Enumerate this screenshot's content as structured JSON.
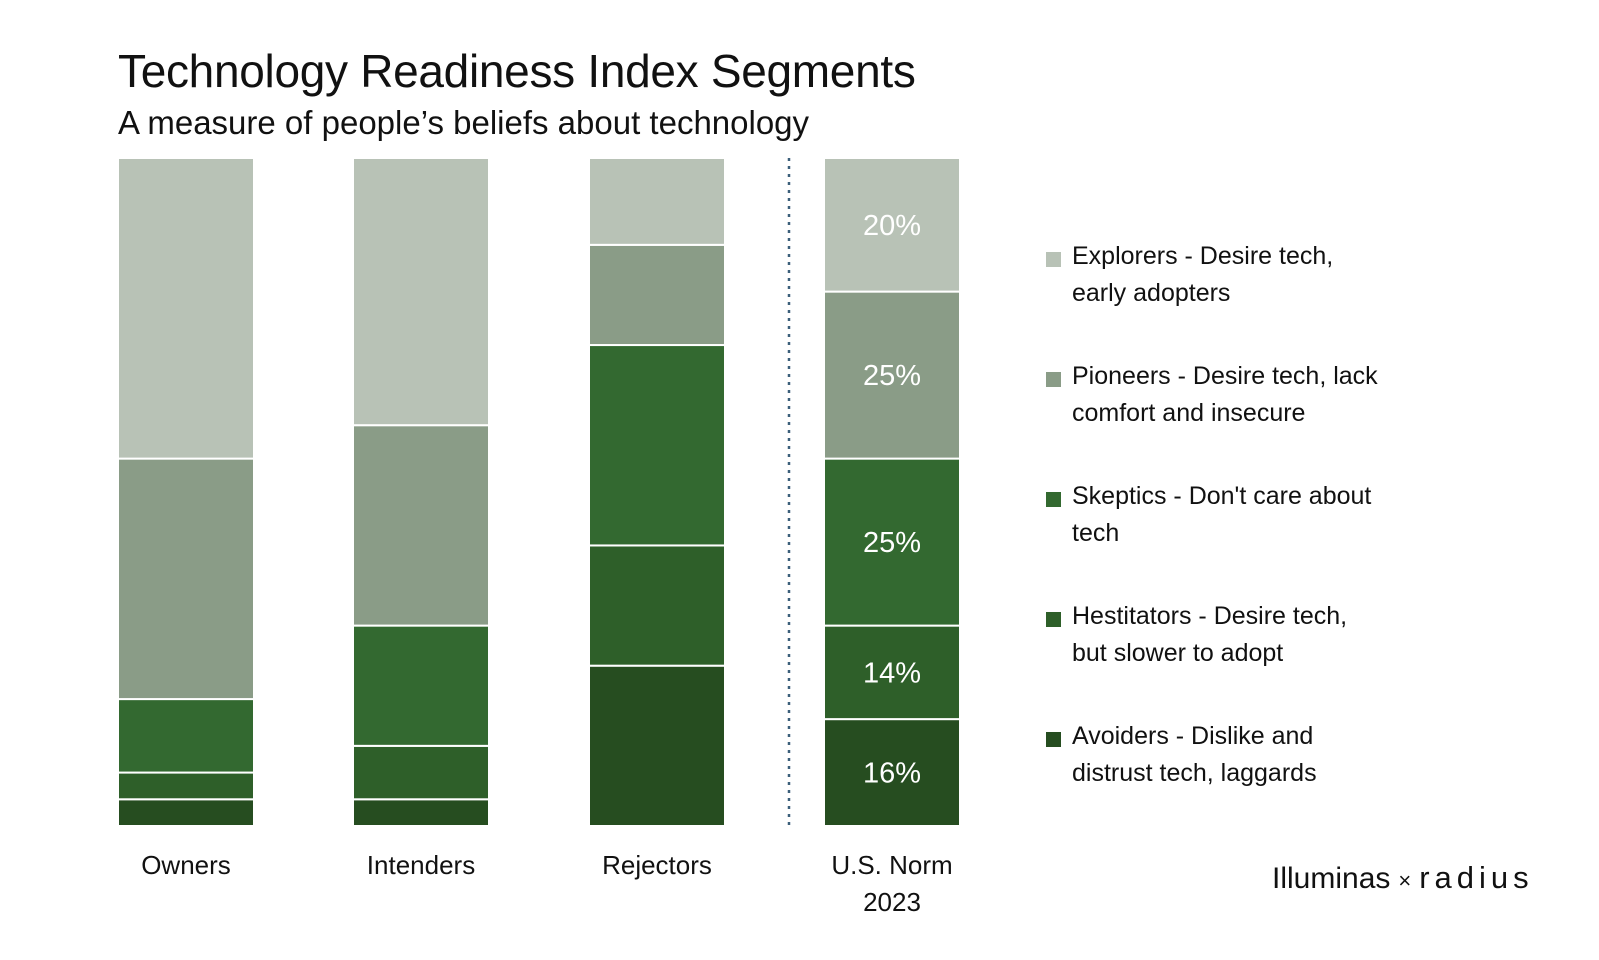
{
  "chart_data": {
    "type": "bar",
    "stacked": true,
    "title": "Technology Readiness Index Segments",
    "subtitle": "A measure of people’s beliefs about technology",
    "categories": [
      "Owners",
      "Intenders",
      "Rejectors",
      "U.S. Norm 2023"
    ],
    "category_lines": [
      [
        "Owners"
      ],
      [
        "Intenders"
      ],
      [
        "Rejectors"
      ],
      [
        "U.S. Norm",
        "2023"
      ]
    ],
    "ylim": [
      0,
      100
    ],
    "series": [
      {
        "name": "Avoiders - Dislike and distrust tech, laggards",
        "color": "#264d20",
        "values": [
          4,
          4,
          24,
          16
        ]
      },
      {
        "name": "Hestitators - Desire tech, but slower to adopt",
        "color": "#2e5f29",
        "values": [
          4,
          8,
          18,
          14
        ]
      },
      {
        "name": "Skeptics - Don't care about tech",
        "color": "#336930",
        "values": [
          11,
          18,
          30,
          25
        ]
      },
      {
        "name": "Pioneers - Desire tech, lack comfort and insecure",
        "color": "#8a9c87",
        "values": [
          36,
          30,
          15,
          25
        ]
      },
      {
        "name": "Explorers - Desire tech, early adopters",
        "color": "#b8c2b6",
        "values": [
          45,
          40,
          13,
          20
        ]
      }
    ],
    "data_labels": {
      "category_index": 3,
      "labels": [
        "16%",
        "14%",
        "25%",
        "25%",
        "20%"
      ]
    },
    "separator": "dotted line before U.S. Norm 2023",
    "legend_position": "right",
    "grid": false
  },
  "legend": {
    "items": [
      {
        "lines": [
          "Explorers - Desire tech,",
          "early adopters"
        ],
        "color": "#b8c2b6"
      },
      {
        "lines": [
          "Pioneers - Desire tech, lack",
          "comfort and insecure"
        ],
        "color": "#8a9c87"
      },
      {
        "lines": [
          "Skeptics - Don't care about",
          "tech"
        ],
        "color": "#336930"
      },
      {
        "lines": [
          "Hestitators - Desire tech,",
          "but slower to adopt"
        ],
        "color": "#2e5f29"
      },
      {
        "lines": [
          "Avoiders - Dislike and",
          "distrust tech, laggards"
        ],
        "color": "#264d20"
      }
    ]
  },
  "brand": {
    "left": "Illuminas",
    "sep": "×",
    "right": "radius"
  }
}
